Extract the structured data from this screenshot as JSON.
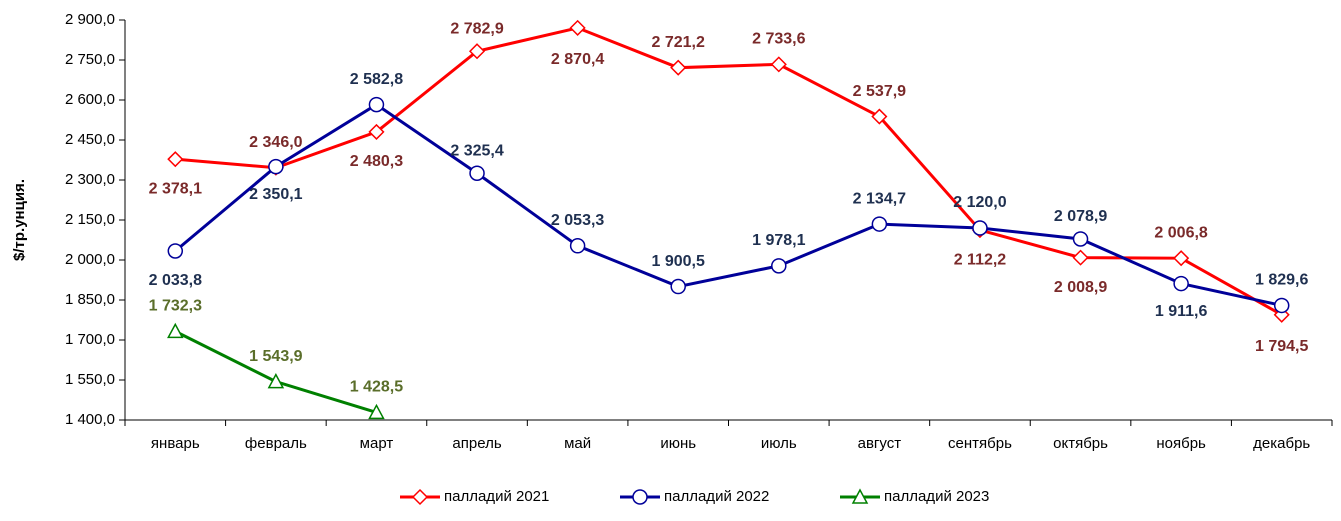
{
  "chart_data": {
    "type": "line",
    "y_label": "$/тр.унция.",
    "categories": [
      "январь",
      "февраль",
      "март",
      "апрель",
      "май",
      "июнь",
      "июль",
      "август",
      "сентябрь",
      "октябрь",
      "ноябрь",
      "декабрь"
    ],
    "series": [
      {
        "name": "палладий 2021",
        "color": "#ff0000",
        "label_color": "#7a2a2a",
        "marker": "diamond",
        "values": [
          2378.1,
          2346.0,
          2480.3,
          2782.9,
          2870.4,
          2721.2,
          2733.6,
          2537.9,
          2112.2,
          2008.9,
          2006.8,
          1794.5
        ],
        "value_labels": [
          "2 378,1",
          "2 346,0",
          "2 480,3",
          "2 782,9",
          "2 870,4",
          "2 721,2",
          "2 733,6",
          "2 537,9",
          "2 112,2",
          "2 008,9",
          "2 006,8",
          "1 794,5"
        ]
      },
      {
        "name": "палладий 2022",
        "color": "#000099",
        "label_color": "#1f3050",
        "marker": "circle",
        "values": [
          2033.8,
          2350.1,
          2582.8,
          2325.4,
          2053.3,
          1900.5,
          1978.1,
          2134.7,
          2120.0,
          2078.9,
          1911.6,
          1829.6
        ],
        "value_labels": [
          "2 033,8",
          "2 350,1",
          "2 582,8",
          "2 325,4",
          "2 053,3",
          "1 900,5",
          "1 978,1",
          "2 134,7",
          "2 120,0",
          "2 078,9",
          "1 911,6",
          "1 829,6"
        ]
      },
      {
        "name": "палладий 2023",
        "color": "#008000",
        "label_color": "#5a6e2a",
        "marker": "triangle",
        "values": [
          1732.3,
          1543.9,
          1428.5,
          null,
          null,
          null,
          null,
          null,
          null,
          null,
          null,
          null
        ],
        "value_labels": [
          "1 732,3",
          "1 543,9",
          "1 428,5",
          null,
          null,
          null,
          null,
          null,
          null,
          null,
          null,
          null
        ]
      }
    ],
    "ylim": [
      1400,
      2900
    ],
    "yticks": [
      {
        "value": 1400,
        "label": "1 400,0"
      },
      {
        "value": 1550,
        "label": "1 550,0"
      },
      {
        "value": 1700,
        "label": "1 700,0"
      },
      {
        "value": 1850,
        "label": "1 850,0"
      },
      {
        "value": 2000,
        "label": "2 000,0"
      },
      {
        "value": 2150,
        "label": "2 150,0"
      },
      {
        "value": 2300,
        "label": "2 300,0"
      },
      {
        "value": 2450,
        "label": "2 450,0"
      },
      {
        "value": 2600,
        "label": "2 600,0"
      },
      {
        "value": 2750,
        "label": "2 750,0"
      },
      {
        "value": 2900,
        "label": "2 900,0"
      }
    ],
    "grid": false,
    "legend": "bottom"
  }
}
